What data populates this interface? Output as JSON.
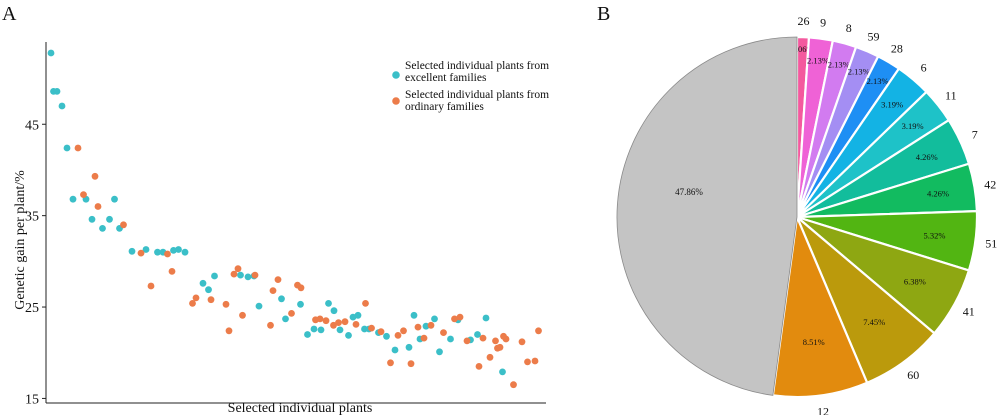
{
  "panels": {
    "a": "A",
    "b": "B"
  },
  "colors": {
    "excellent": "#3bbfc8",
    "ordinary": "#ec7c4a"
  },
  "chart_data": [
    {
      "type": "scatter",
      "title": "",
      "xlabel": "Selected individual plants",
      "ylabel": "Genetic gain per plant/%",
      "ylim": [
        14.5,
        54
      ],
      "yticks": [
        15,
        25,
        35,
        45
      ],
      "xlim": [
        0,
        100
      ],
      "grid": false,
      "legend_position": "top-right",
      "legend_lines": [
        [
          "Selected individual plants from",
          "excellent families"
        ],
        [
          "Selected individual plants from",
          "ordinary families"
        ]
      ],
      "series": [
        {
          "name": "Selected individual plants from excellent families",
          "color": "#3bbfc8",
          "points": [
            [
              1,
              52.8
            ],
            [
              1.5,
              48.6
            ],
            [
              2.2,
              48.6
            ],
            [
              3.2,
              47.0
            ],
            [
              4.2,
              42.4
            ],
            [
              5.4,
              36.8
            ],
            [
              8,
              36.8
            ],
            [
              9.2,
              34.6
            ],
            [
              11.3,
              33.6
            ],
            [
              12.7,
              34.6
            ],
            [
              13.7,
              36.8
            ],
            [
              14.7,
              33.6
            ],
            [
              17.2,
              31.1
            ],
            [
              20,
              31.3
            ],
            [
              22.3,
              31.0
            ],
            [
              23.4,
              31.0
            ],
            [
              25.5,
              31.2
            ],
            [
              26.5,
              31.3
            ],
            [
              27.8,
              31.0
            ],
            [
              31.4,
              27.6
            ],
            [
              32.5,
              26.9
            ],
            [
              33.7,
              28.4
            ],
            [
              38.9,
              28.5
            ],
            [
              40.4,
              28.3
            ],
            [
              41.6,
              28.4
            ],
            [
              42.6,
              25.1
            ],
            [
              47.1,
              25.9
            ],
            [
              47.9,
              23.7
            ],
            [
              50.9,
              25.3
            ],
            [
              52.3,
              22.0
            ],
            [
              53.6,
              22.6
            ],
            [
              55,
              22.5
            ],
            [
              56.5,
              25.4
            ],
            [
              57.6,
              24.6
            ],
            [
              58.8,
              22.5
            ],
            [
              60.5,
              21.9
            ],
            [
              61.4,
              23.9
            ],
            [
              62.4,
              24.1
            ],
            [
              63.7,
              22.6
            ],
            [
              64.6,
              22.6
            ],
            [
              66.5,
              22.2
            ],
            [
              68.1,
              21.8
            ],
            [
              69.8,
              20.3
            ],
            [
              72.6,
              20.6
            ],
            [
              73.6,
              24.1
            ],
            [
              74.8,
              21.5
            ],
            [
              76,
              22.9
            ],
            [
              77.7,
              23.7
            ],
            [
              78.7,
              20.1
            ],
            [
              80.9,
              21.5
            ],
            [
              82.4,
              23.6
            ],
            [
              84.9,
              21.4
            ],
            [
              86.3,
              22.0
            ],
            [
              88,
              23.8
            ],
            [
              91.3,
              17.9
            ]
          ]
        },
        {
          "name": "Selected individual plants from ordinary families",
          "color": "#ec7c4a",
          "points": [
            [
              6.4,
              42.4
            ],
            [
              7.5,
              37.3
            ],
            [
              9.8,
              39.3
            ],
            [
              10.4,
              36.0
            ],
            [
              15.5,
              34.0
            ],
            [
              19,
              30.9
            ],
            [
              21,
              27.3
            ],
            [
              24.3,
              30.8
            ],
            [
              25.2,
              28.9
            ],
            [
              29.3,
              25.4
            ],
            [
              30,
              26.0
            ],
            [
              33,
              25.8
            ],
            [
              36,
              25.3
            ],
            [
              36.6,
              22.4
            ],
            [
              37.6,
              28.6
            ],
            [
              38.4,
              29.2
            ],
            [
              39.3,
              24.1
            ],
            [
              41.8,
              28.5
            ],
            [
              44.9,
              23.0
            ],
            [
              45.4,
              26.8
            ],
            [
              46.4,
              28.0
            ],
            [
              49.1,
              24.3
            ],
            [
              50.3,
              27.4
            ],
            [
              51,
              27.1
            ],
            [
              53.9,
              23.6
            ],
            [
              54.8,
              23.7
            ],
            [
              56,
              23.5
            ],
            [
              57.5,
              23.0
            ],
            [
              58.5,
              23.3
            ],
            [
              59.8,
              23.4
            ],
            [
              62,
              23.1
            ],
            [
              63.9,
              25.4
            ],
            [
              65.1,
              22.7
            ],
            [
              67,
              22.3
            ],
            [
              68.9,
              18.9
            ],
            [
              70.4,
              21.9
            ],
            [
              71.5,
              22.4
            ],
            [
              73,
              18.8
            ],
            [
              74.4,
              22.8
            ],
            [
              75.6,
              21.6
            ],
            [
              77,
              23.0
            ],
            [
              79.5,
              22.2
            ],
            [
              81.7,
              23.7
            ],
            [
              82.8,
              23.9
            ],
            [
              84.2,
              21.3
            ],
            [
              86.6,
              18.5
            ],
            [
              87.4,
              21.6
            ],
            [
              88.8,
              19.5
            ],
            [
              89.9,
              21.3
            ],
            [
              90.3,
              20.5
            ],
            [
              90.8,
              20.6
            ],
            [
              91.5,
              21.8
            ],
            [
              92,
              21.5
            ],
            [
              93.5,
              16.5
            ],
            [
              95.2,
              21.2
            ],
            [
              96.3,
              19.0
            ],
            [
              97.8,
              19.1
            ],
            [
              98.5,
              22.4
            ]
          ]
        }
      ]
    },
    {
      "type": "pie",
      "title": "",
      "slices": [
        {
          "label": "26",
          "percent": "1.06%",
          "value": 1.06,
          "color": "#f4599e"
        },
        {
          "label": "9",
          "percent": "2.13%",
          "value": 2.13,
          "color": "#ef62d6"
        },
        {
          "label": "8",
          "percent": "2.13%",
          "value": 2.13,
          "color": "#d27bf0"
        },
        {
          "label": "59",
          "percent": "2.13%",
          "value": 2.13,
          "color": "#a48ef3"
        },
        {
          "label": "28",
          "percent": "2.13%",
          "value": 2.13,
          "color": "#1e8ff4"
        },
        {
          "label": "6",
          "percent": "3.19%",
          "value": 3.19,
          "color": "#13b3e4"
        },
        {
          "label": "11",
          "percent": "3.19%",
          "value": 3.19,
          "color": "#1ec2c8"
        },
        {
          "label": "7",
          "percent": "4.26%",
          "value": 4.26,
          "color": "#12bd9c"
        },
        {
          "label": "42",
          "percent": "4.26%",
          "value": 4.26,
          "color": "#12bb60"
        },
        {
          "label": "51",
          "percent": "5.32%",
          "value": 5.32,
          "color": "#52b512"
        },
        {
          "label": "41",
          "percent": "6.38%",
          "value": 6.38,
          "color": "#8ea712"
        },
        {
          "label": "60",
          "percent": "7.45%",
          "value": 7.45,
          "color": "#bb9a0c"
        },
        {
          "label": "12",
          "percent": "8.51%",
          "value": 8.51,
          "color": "#e28b0e"
        },
        {
          "label": "",
          "percent": "47.86%",
          "value": 47.86,
          "color": "#c4c4c4"
        }
      ]
    }
  ]
}
